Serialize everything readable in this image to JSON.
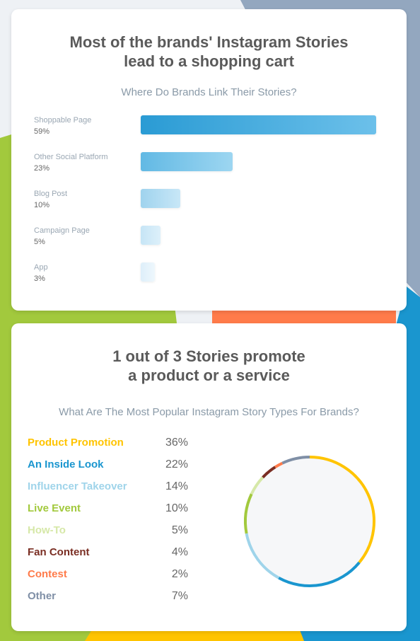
{
  "colors": {
    "bg_blue_grey": "#93a7bf",
    "bg_green": "#a2c93d",
    "bg_orange": "#ff7b4a",
    "bg_blue": "#1a96cf",
    "bg_yellow": "#ffc400"
  },
  "card1": {
    "title_line1": "Most of the brands' Instagram Stories",
    "title_line2": "lead to a shopping cart",
    "subtitle": "Where Do Brands Link Their Stories?"
  },
  "card2": {
    "title_line1": "1 out of 3 Stories promote",
    "title_line2": "a product or a service",
    "subtitle": "What Are The Most Popular Instagram Story Types For Brands?"
  },
  "chart_data": [
    {
      "type": "bar",
      "orientation": "horizontal",
      "categories": [
        "Shoppable Page",
        "Other Social Platform",
        "Blog Post",
        "Campaign Page",
        "App"
      ],
      "value_labels": [
        "59%",
        "23%",
        "10%",
        "5%",
        "3%"
      ],
      "values": [
        59,
        23,
        10,
        5,
        3
      ],
      "title": "Most of the brands' Instagram Stories lead to a shopping cart",
      "subtitle": "Where Do Brands Link Their Stories?"
    },
    {
      "type": "pie",
      "donut": true,
      "categories": [
        "Product Promotion",
        "An Inside Look",
        "Influencer Takeover",
        "Live Event",
        "How-To",
        "Fan Content",
        "Contest",
        "Other"
      ],
      "value_labels": [
        "36%",
        "22%",
        "14%",
        "10%",
        "5%",
        "4%",
        "2%",
        "7%"
      ],
      "values": [
        36,
        22,
        14,
        10,
        5,
        4,
        2,
        7
      ],
      "colors": [
        "#ffc400",
        "#1a96cf",
        "#9fd4ea",
        "#a2c93d",
        "#d6e8a8",
        "#7a2e23",
        "#ff7b4a",
        "#7f8fa6"
      ],
      "title": "1 out of 3 Stories promote a product or a service",
      "subtitle": "What Are The Most Popular Instagram Story Types For Brands?"
    }
  ]
}
